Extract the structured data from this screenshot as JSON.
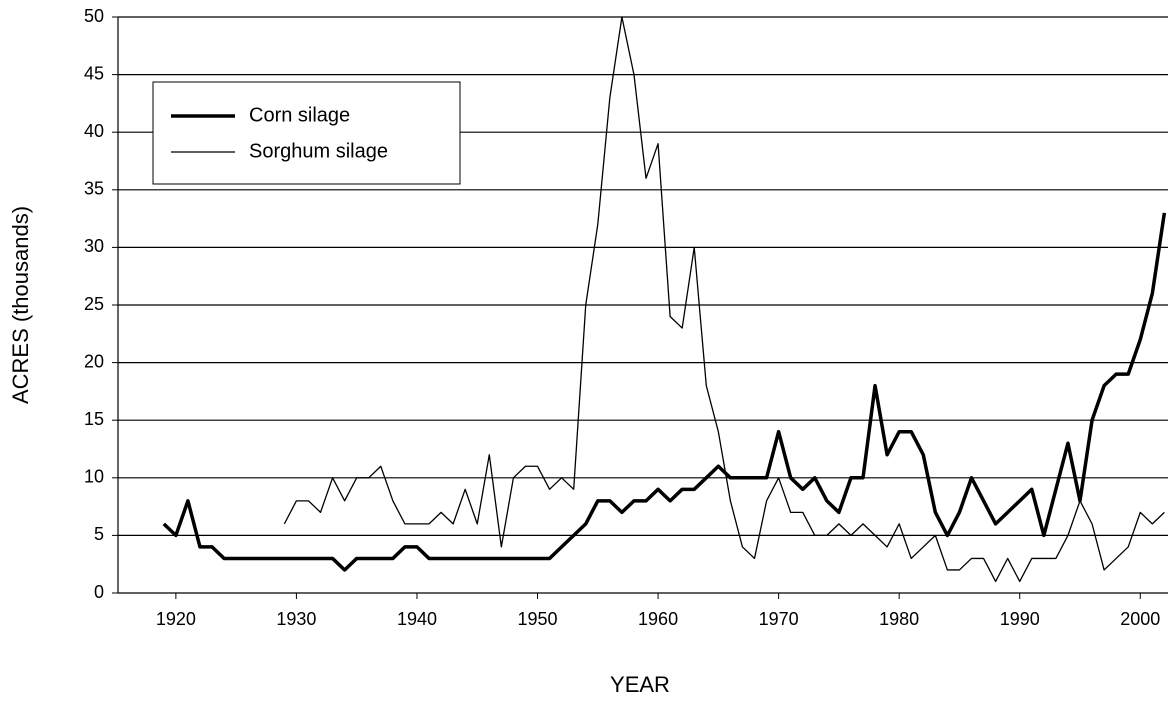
{
  "chart_data": {
    "type": "line",
    "xlabel": "YEAR",
    "ylabel": "ACRES (thousands)",
    "x": [
      1919,
      1920,
      1921,
      1922,
      1923,
      1924,
      1925,
      1926,
      1927,
      1928,
      1929,
      1930,
      1931,
      1932,
      1933,
      1934,
      1935,
      1936,
      1937,
      1938,
      1939,
      1940,
      1941,
      1942,
      1943,
      1944,
      1945,
      1946,
      1947,
      1948,
      1949,
      1950,
      1951,
      1952,
      1953,
      1954,
      1955,
      1956,
      1957,
      1958,
      1959,
      1960,
      1961,
      1962,
      1963,
      1964,
      1965,
      1966,
      1967,
      1968,
      1969,
      1970,
      1971,
      1972,
      1973,
      1974,
      1975,
      1976,
      1977,
      1978,
      1979,
      1980,
      1981,
      1982,
      1983,
      1984,
      1985,
      1986,
      1987,
      1988,
      1989,
      1990,
      1991,
      1992,
      1993,
      1994,
      1995,
      1996,
      1997,
      1998,
      1999,
      2000,
      2001,
      2002
    ],
    "series": [
      {
        "name": "Corn silage",
        "color": "#000000",
        "values": [
          6,
          5,
          8,
          4,
          4,
          3,
          3,
          3,
          3,
          3,
          3,
          3,
          3,
          3,
          3,
          2,
          3,
          3,
          3,
          3,
          4,
          4,
          3,
          3,
          3,
          3,
          3,
          3,
          3,
          3,
          3,
          3,
          3,
          4,
          5,
          6,
          8,
          8,
          7,
          8,
          8,
          9,
          8,
          9,
          9,
          10,
          11,
          10,
          10,
          10,
          10,
          14,
          10,
          9,
          10,
          8,
          7,
          10,
          10,
          18,
          12,
          14,
          14,
          12,
          7,
          5,
          7,
          10,
          8,
          6,
          7,
          8,
          9,
          5,
          9,
          13,
          8,
          15,
          18,
          19,
          19,
          22,
          26,
          33
        ]
      },
      {
        "name": "Sorghum silage",
        "color": "#000000",
        "values": [
          null,
          null,
          null,
          null,
          null,
          null,
          null,
          null,
          null,
          null,
          6,
          8,
          8,
          7,
          10,
          8,
          10,
          10,
          11,
          8,
          6,
          6,
          6,
          7,
          6,
          9,
          6,
          12,
          4,
          10,
          11,
          11,
          9,
          10,
          9,
          25,
          32,
          43,
          50,
          45,
          36,
          39,
          24,
          23,
          30,
          18,
          14,
          8,
          4,
          3,
          8,
          10,
          7,
          7,
          5,
          5,
          6,
          5,
          6,
          5,
          4,
          6,
          3,
          4,
          5,
          2,
          2,
          3,
          3,
          1,
          3,
          1,
          3,
          3,
          3,
          5,
          8,
          6,
          2,
          3,
          4,
          7,
          6,
          7
        ]
      }
    ],
    "xlim": [
      1915.2,
      2002.3
    ],
    "xticks": [
      1920,
      1930,
      1940,
      1950,
      1960,
      1970,
      1980,
      1990,
      2000
    ],
    "ylim": [
      0,
      50
    ],
    "yticks": [
      0,
      5,
      10,
      15,
      20,
      25,
      30,
      35,
      40,
      45,
      50
    ],
    "grid": true
  }
}
